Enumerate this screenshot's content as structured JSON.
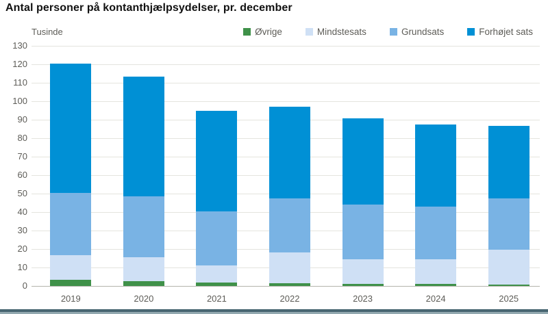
{
  "title": "Antal personer på kontanthjælpsydelser, pr. december",
  "unit_label": "Tusinde",
  "legend": [
    {
      "label": "Øvrige",
      "color": "#3f9149"
    },
    {
      "label": "Mindstesats",
      "color": "#cfe0f5"
    },
    {
      "label": "Grundsats",
      "color": "#79b3e4"
    },
    {
      "label": "Forhøjet sats",
      "color": "#0090d5"
    }
  ],
  "chart_data": {
    "type": "bar",
    "stacked": true,
    "title": "Antal personer på kontanthjælpsydelser, pr. december",
    "ylabel": "Tusinde",
    "xlabel": "",
    "categories": [
      "2019",
      "2020",
      "2021",
      "2022",
      "2023",
      "2024",
      "2025"
    ],
    "series": [
      {
        "name": "Øvrige",
        "color": "#3f9149",
        "values": [
          3.5,
          2.5,
          1.8,
          1.5,
          1.2,
          1.0,
          0.8
        ]
      },
      {
        "name": "Mindstesats",
        "color": "#cfe0f5",
        "values": [
          13.0,
          13.0,
          9.2,
          16.5,
          13.3,
          13.5,
          18.7
        ]
      },
      {
        "name": "Grundsats",
        "color": "#79b3e4",
        "values": [
          34.0,
          33.0,
          29.5,
          29.5,
          29.5,
          28.5,
          28.0
        ]
      },
      {
        "name": "Forhøjet sats",
        "color": "#0090d5",
        "values": [
          69.9,
          65.0,
          54.5,
          49.5,
          46.9,
          44.4,
          39.3
        ]
      }
    ],
    "ylim": [
      0,
      130
    ],
    "yticks": [
      0,
      10,
      20,
      30,
      40,
      50,
      60,
      70,
      80,
      90,
      100,
      110,
      120,
      130
    ],
    "grid": true,
    "legend_position": "top"
  },
  "colors": {
    "background": "#ffffff",
    "title_text": "#111111",
    "axis_text": "#5d5c57",
    "gridline": "#e4e4de",
    "baseline": "#b3b3ac",
    "footer_dark": "#486672",
    "footer_light": "#93a9b0"
  }
}
